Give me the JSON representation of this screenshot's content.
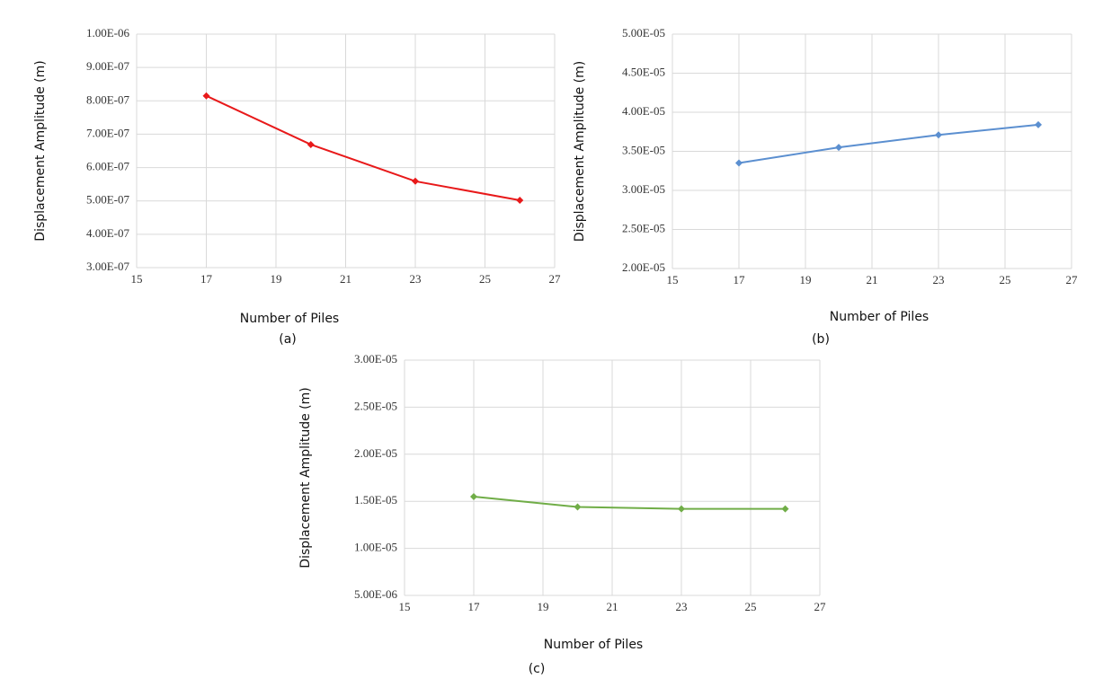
{
  "chart_data": [
    {
      "type": "line",
      "caption": "(a)",
      "x_label": "Number of Piles",
      "y_label": "Displacement Amplitude (m)",
      "x": [
        17,
        20,
        23,
        26
      ],
      "series": [
        {
          "color": "#e8191a",
          "values": [
            8.15e-07,
            6.69e-07,
            5.59e-07,
            5.02e-07
          ]
        }
      ],
      "xlim": [
        15,
        27
      ],
      "xticks": [
        15,
        17,
        19,
        21,
        23,
        25,
        27
      ],
      "ylim": [
        3e-07,
        1e-06
      ],
      "yticks": [
        {
          "value": 3e-07,
          "label": "3.00E-07"
        },
        {
          "value": 4e-07,
          "label": "4.00E-07"
        },
        {
          "value": 5e-07,
          "label": "5.00E-07"
        },
        {
          "value": 6e-07,
          "label": "6.00E-07"
        },
        {
          "value": 7e-07,
          "label": "7.00E-07"
        },
        {
          "value": 8e-07,
          "label": "8.00E-07"
        },
        {
          "value": 9e-07,
          "label": "9.00E-07"
        },
        {
          "value": 1e-06,
          "label": "1.00E-06"
        }
      ],
      "grid": true
    },
    {
      "type": "line",
      "caption": "(b)",
      "x_label": "Number of Piles",
      "y_label": "Displacement Amplitude (m)",
      "x": [
        17,
        20,
        23,
        26
      ],
      "series": [
        {
          "color": "#5b8fd0",
          "values": [
            3.35e-05,
            3.55e-05,
            3.71e-05,
            3.84e-05
          ]
        }
      ],
      "xlim": [
        15,
        27
      ],
      "xticks": [
        15,
        17,
        19,
        21,
        23,
        25,
        27
      ],
      "ylim": [
        2e-05,
        5e-05
      ],
      "yticks": [
        {
          "value": 2e-05,
          "label": "2.00E-05"
        },
        {
          "value": 2.5e-05,
          "label": "2.50E-05"
        },
        {
          "value": 3e-05,
          "label": "3.00E-05"
        },
        {
          "value": 3.5e-05,
          "label": "3.50E-05"
        },
        {
          "value": 4e-05,
          "label": "4.00E-05"
        },
        {
          "value": 4.5e-05,
          "label": "4.50E-05"
        },
        {
          "value": 5e-05,
          "label": "5.00E-05"
        }
      ],
      "grid": true
    },
    {
      "type": "line",
      "caption": "(c)",
      "x_label": "Number of Piles",
      "y_label": "Displacement Amplitude (m)",
      "x": [
        17,
        20,
        23,
        26
      ],
      "series": [
        {
          "color": "#70ad47",
          "values": [
            1.55e-05,
            1.44e-05,
            1.42e-05,
            1.42e-05
          ]
        }
      ],
      "xlim": [
        15,
        27
      ],
      "xticks": [
        15,
        17,
        19,
        21,
        23,
        25,
        27
      ],
      "ylim": [
        5e-06,
        3e-05
      ],
      "yticks": [
        {
          "value": 5e-06,
          "label": "5.00E-06"
        },
        {
          "value": 1e-05,
          "label": "1.00E-05"
        },
        {
          "value": 1.5e-05,
          "label": "1.50E-05"
        },
        {
          "value": 2e-05,
          "label": "2.00E-05"
        },
        {
          "value": 2.5e-05,
          "label": "2.50E-05"
        },
        {
          "value": 3e-05,
          "label": "3.00E-05"
        }
      ],
      "grid": true
    }
  ]
}
